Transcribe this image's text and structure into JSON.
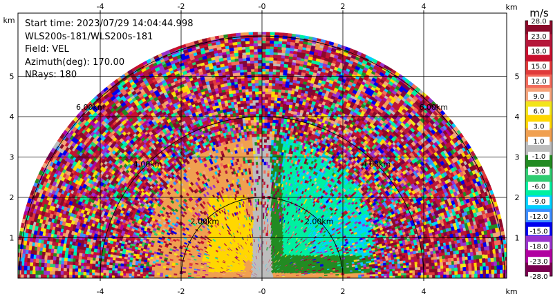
{
  "info": {
    "start_time": "Start time: 2023/07/29 14:04:44.998",
    "instrument": "WLS200s-181/WLS200s-181",
    "field": "Field: VEL",
    "azimuth": "Azimuth(deg): 170.00",
    "nrays": "NRays: 180"
  },
  "axes": {
    "unit_label": "km",
    "x_ticks": [
      "-4",
      "-2",
      "-0",
      "2",
      "4"
    ],
    "y_ticks": [
      "1",
      "2",
      "3",
      "4",
      "5"
    ],
    "x_range_km": [
      -6,
      6
    ],
    "y_range_km": [
      0,
      6
    ]
  },
  "range_rings": {
    "labels": [
      "2.00km",
      "4.00km",
      "6.00km"
    ],
    "values_km": [
      2,
      4,
      6
    ]
  },
  "colorbar": {
    "unit": "m/s",
    "tick_labels": [
      "28.0",
      "23.0",
      "18.0",
      "15.0",
      "12.0",
      "9.0",
      "6.0",
      "3.0",
      "1.0",
      "-1.0",
      "-3.0",
      "-6.0",
      "-9.0",
      "-12.0",
      "-15.0",
      "-18.0",
      "-23.0",
      "-28.0"
    ],
    "colors": [
      "#8a0a2a",
      "#b5173a",
      "#c8102e",
      "#e03a3a",
      "#f26b5b",
      "#f5a37a",
      "#f2e41a",
      "#ffd700",
      "#f0a050",
      "#bdbdbd",
      "#228b22",
      "#2ecc71",
      "#00f0a0",
      "#00d0ff",
      "#3c8cff",
      "#0000ee",
      "#9932cc",
      "#b000a0",
      "#7a0050"
    ]
  },
  "colors": {
    "red_pos": "#c8102e",
    "orange": "#f0a050",
    "yellow": "#ffd700",
    "gray": "#bdbdbd",
    "green_dark": "#228b22",
    "green_bright": "#00f0a0",
    "cyan": "#00d0ff",
    "blue": "#3c8cff"
  }
}
